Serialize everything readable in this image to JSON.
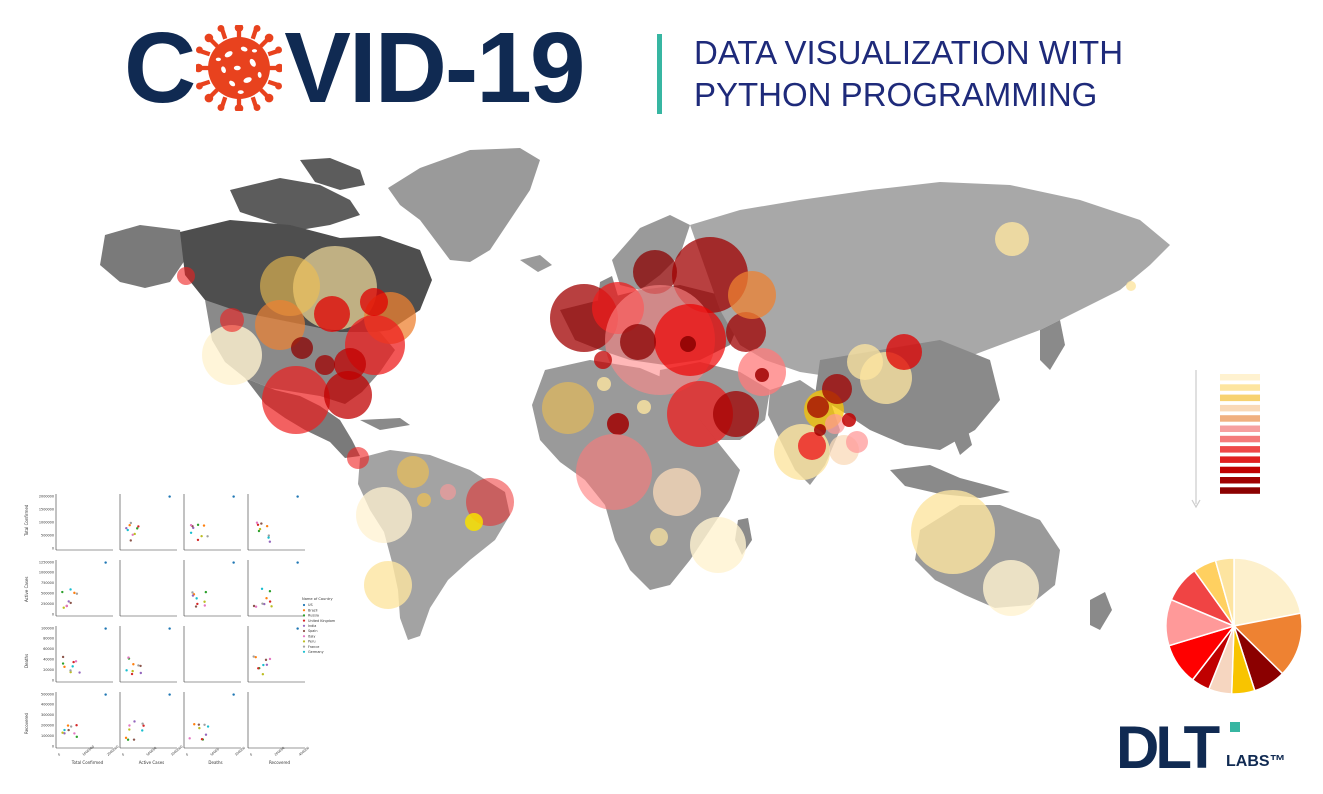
{
  "header": {
    "title_left": "C",
    "title_right": "VID-19",
    "subtitle_line1": "DATA VISUALIZATION WITH",
    "subtitle_line2": "PYTHON PROGRAMMING"
  },
  "pairplot": {
    "row_labels": [
      "Total Confirmed",
      "Active Cases",
      "Deaths",
      "Recovered"
    ],
    "col_labels": [
      "Total Confirmed",
      "Active Cases",
      "Deaths",
      "Recovered"
    ],
    "legend_title": "Name of Country",
    "countries": [
      "US",
      "Brazil",
      "Russia",
      "United Kingdom",
      "India",
      "Spain",
      "Italy",
      "Peru",
      "France",
      "Germany"
    ],
    "country_colors": [
      "#1f77b4",
      "#ff7f0e",
      "#2ca02c",
      "#d62728",
      "#9467bd",
      "#8c564b",
      "#e377c2",
      "#bcbd22",
      "#a0a0a0",
      "#17becf"
    ],
    "y_ticks": {
      "Total Confirmed": [
        "2000000",
        "1500000",
        "1000000",
        "500000",
        "0"
      ],
      "Active Cases": [
        "1250000",
        "1000000",
        "750000",
        "500000",
        "250000",
        "0"
      ],
      "Deaths": [
        "100000",
        "80000",
        "60000",
        "40000",
        "20000",
        "0"
      ],
      "Recovered": [
        "500000",
        "400000",
        "300000",
        "200000",
        "100000",
        "0"
      ]
    },
    "x_ticks": {
      "Total Confirmed": [
        "0",
        "1000000",
        "2000000"
      ],
      "Active Cases": [
        "0",
        "500000",
        "1000000"
      ],
      "Deaths": [
        "0",
        "50000",
        "100000"
      ],
      "Recovered": [
        "0",
        "200000",
        "400000"
      ]
    }
  },
  "scale_colors": [
    "#fff2d0",
    "#fde5a0",
    "#f7d270",
    "#f9d9b8",
    "#f0b080",
    "#f6a0a0",
    "#f47b7b",
    "#ee4848",
    "#e02020",
    "#c00000",
    "#a00000",
    "#8b0000"
  ],
  "pie_chart": {
    "values": [
      20,
      14,
      7,
      5,
      5,
      4,
      9,
      10,
      8,
      5,
      4
    ],
    "colors": [
      "#fdf0cc",
      "#ee8232",
      "#8b0000",
      "#f8c400",
      "#f6d6c0",
      "#c00000",
      "#ff0000",
      "#ff9999",
      "#f04444",
      "#ffd060",
      "#fde4a0"
    ]
  },
  "logo": {
    "main": "DLT",
    "sub": "LABS™"
  }
}
